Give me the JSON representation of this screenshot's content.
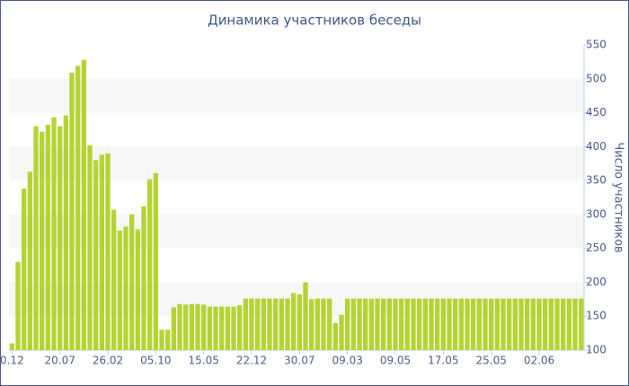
{
  "chart_data": {
    "type": "bar",
    "title": "Динамика участников беседы",
    "y_axis_label": "Число участников",
    "categories": [
      "0.12",
      null,
      null,
      null,
      null,
      null,
      null,
      null,
      "20.07",
      null,
      null,
      null,
      null,
      null,
      null,
      null,
      "26.02",
      null,
      null,
      null,
      null,
      null,
      null,
      null,
      "05.10",
      null,
      null,
      null,
      null,
      null,
      null,
      null,
      "15.05",
      null,
      null,
      null,
      null,
      null,
      null,
      null,
      "22.12",
      null,
      null,
      null,
      null,
      null,
      null,
      null,
      "30.07",
      null,
      null,
      null,
      null,
      null,
      null,
      null,
      "09.03",
      null,
      null,
      null,
      null,
      null,
      null,
      null,
      "09.05",
      null,
      null,
      null,
      null,
      null,
      null,
      null,
      "17.05",
      null,
      null,
      null,
      null,
      null,
      null,
      null,
      "25.05",
      null,
      null,
      null,
      null,
      null,
      null,
      null,
      "02.06",
      null,
      null,
      null,
      null,
      null,
      null,
      null
    ],
    "values": [
      110,
      230,
      338,
      363,
      430,
      422,
      432,
      443,
      430,
      446,
      509,
      519,
      528,
      402,
      380,
      388,
      390,
      307,
      276,
      282,
      300,
      278,
      312,
      352,
      361,
      130,
      130,
      163,
      168,
      167,
      168,
      168,
      167,
      164,
      164,
      164,
      164,
      164,
      166,
      176,
      176,
      176,
      176,
      176,
      176,
      176,
      176,
      184,
      182,
      200,
      175,
      176,
      176,
      176,
      140,
      152,
      176,
      176,
      176,
      176,
      176,
      176,
      176,
      176,
      176,
      176,
      176,
      176,
      176,
      176,
      176,
      176,
      176,
      176,
      176,
      176,
      176,
      176,
      176,
      176,
      176,
      176,
      176,
      176,
      176,
      176,
      176,
      176,
      176,
      176,
      176,
      176,
      176,
      176,
      176,
      176
    ],
    "color": "#b5d334",
    "ylim": [
      100,
      550
    ],
    "yticks": [
      100,
      150,
      200,
      250,
      300,
      350,
      400,
      450,
      500,
      550
    ],
    "grid": "bands"
  }
}
